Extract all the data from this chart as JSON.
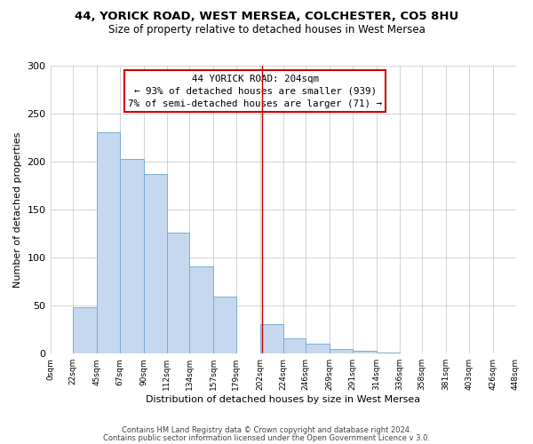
{
  "title": "44, YORICK ROAD, WEST MERSEA, COLCHESTER, CO5 8HU",
  "subtitle": "Size of property relative to detached houses in West Mersea",
  "xlabel": "Distribution of detached houses by size in West Mersea",
  "ylabel": "Number of detached properties",
  "footnote1": "Contains HM Land Registry data © Crown copyright and database right 2024.",
  "footnote2": "Contains public sector information licensed under the Open Government Licence v 3.0.",
  "bar_left_edges": [
    0,
    22,
    45,
    67,
    90,
    112,
    134,
    157,
    179,
    202,
    224,
    246,
    269,
    291,
    314,
    336,
    358,
    381,
    403,
    426
  ],
  "bar_heights": [
    0,
    48,
    231,
    203,
    187,
    126,
    91,
    59,
    0,
    31,
    16,
    10,
    5,
    3,
    1,
    0,
    0,
    0,
    0,
    0
  ],
  "bar_widths": [
    22,
    23,
    22,
    23,
    22,
    22,
    23,
    22,
    23,
    22,
    22,
    23,
    22,
    23,
    22,
    22,
    23,
    22,
    23,
    22
  ],
  "bar_color": "#c5d8f0",
  "bar_edgecolor": "#7aadd4",
  "property_line_x": 204,
  "property_line_color": "#cc0000",
  "annotation_title": "44 YORICK ROAD: 204sqm",
  "annotation_line1": "← 93% of detached houses are smaller (939)",
  "annotation_line2": "7% of semi-detached houses are larger (71) →",
  "annotation_box_facecolor": "#ffffff",
  "annotation_box_edgecolor": "#cc0000",
  "ylim": [
    0,
    300
  ],
  "xlim": [
    0,
    448
  ],
  "xtick_positions": [
    0,
    22,
    45,
    67,
    90,
    112,
    134,
    157,
    179,
    202,
    224,
    246,
    269,
    291,
    314,
    336,
    358,
    381,
    403,
    426,
    448
  ],
  "xtick_labels": [
    "0sqm",
    "22sqm",
    "45sqm",
    "67sqm",
    "90sqm",
    "112sqm",
    "134sqm",
    "157sqm",
    "179sqm",
    "202sqm",
    "224sqm",
    "246sqm",
    "269sqm",
    "291sqm",
    "314sqm",
    "336sqm",
    "358sqm",
    "381sqm",
    "403sqm",
    "426sqm",
    "448sqm"
  ],
  "ytick_positions": [
    0,
    50,
    100,
    150,
    200,
    250,
    300
  ],
  "ytick_labels": [
    "0",
    "50",
    "100",
    "150",
    "200",
    "250",
    "300"
  ],
  "background_color": "#ffffff",
  "grid_color": "#cccccc",
  "title_fontsize": 9.5,
  "subtitle_fontsize": 8.5,
  "xlabel_fontsize": 8,
  "ylabel_fontsize": 8,
  "xtick_fontsize": 6.5,
  "ytick_fontsize": 8,
  "annotation_fontsize": 7.8,
  "footnote_fontsize": 6
}
